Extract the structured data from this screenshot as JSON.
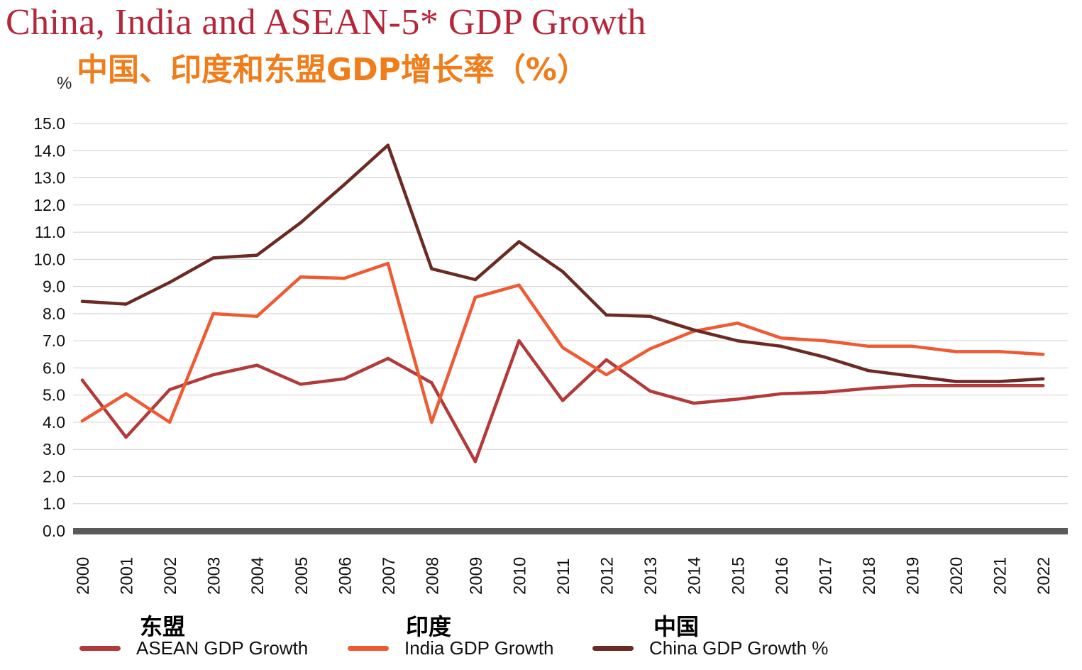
{
  "title": "China, India and ASEAN-5* GDP Growth",
  "subtitle": "中国、印度和东盟GDP增长率（%）",
  "unit_label": "%",
  "legend": [
    {
      "zh": "东盟",
      "en": "ASEAN GDP Growth",
      "color": "#b23a3a"
    },
    {
      "zh": "印度",
      "en": "India GDP Growth",
      "color": "#ee5a32"
    },
    {
      "zh": "中国",
      "en": "China GDP Growth %",
      "color": "#6b2a24"
    }
  ],
  "chart_data": {
    "type": "line",
    "title": "China, India and ASEAN-5* GDP Growth",
    "subtitle": "中国、印度和东盟GDP增长率（%）",
    "ylabel": "%",
    "ylim": [
      0,
      15
    ],
    "yticks": [
      "0.0",
      "1.0",
      "2.0",
      "3.0",
      "4.0",
      "5.0",
      "6.0",
      "7.0",
      "8.0",
      "9.0",
      "10.0",
      "11.0",
      "12.0",
      "13.0",
      "14.0",
      "15.0"
    ],
    "grid": true,
    "legend_position": "bottom",
    "x": [
      "2000",
      "2001",
      "2002",
      "2003",
      "2004",
      "2005",
      "2006",
      "2007",
      "2008",
      "2009",
      "2010",
      "2011",
      "2012",
      "2013",
      "2014",
      "2015",
      "2016",
      "2017",
      "2018",
      "2019",
      "2020",
      "2021",
      "2022"
    ],
    "series": [
      {
        "name": "ASEAN GDP Growth",
        "color": "#b23a3a",
        "values": [
          5.55,
          3.45,
          5.2,
          5.75,
          6.1,
          5.4,
          5.6,
          6.35,
          5.45,
          2.55,
          7.0,
          4.8,
          6.3,
          5.15,
          4.7,
          4.85,
          5.05,
          5.1,
          5.25,
          5.35,
          5.35,
          5.35,
          5.35
        ]
      },
      {
        "name": "India GDP Growth",
        "color": "#ee5a32",
        "values": [
          4.05,
          5.05,
          4.0,
          8.0,
          7.9,
          9.35,
          9.3,
          9.85,
          4.0,
          8.6,
          9.05,
          6.75,
          5.75,
          6.7,
          7.35,
          7.65,
          7.1,
          7.0,
          6.8,
          6.8,
          6.6,
          6.6,
          6.5
        ]
      },
      {
        "name": "China GDP Growth %",
        "color": "#6b2a24",
        "values": [
          8.45,
          8.35,
          9.15,
          10.05,
          10.15,
          11.35,
          12.75,
          14.2,
          9.65,
          9.25,
          10.65,
          9.55,
          7.95,
          7.9,
          7.4,
          7.0,
          6.8,
          6.4,
          5.9,
          5.7,
          5.5,
          5.5,
          5.6
        ]
      }
    ]
  }
}
